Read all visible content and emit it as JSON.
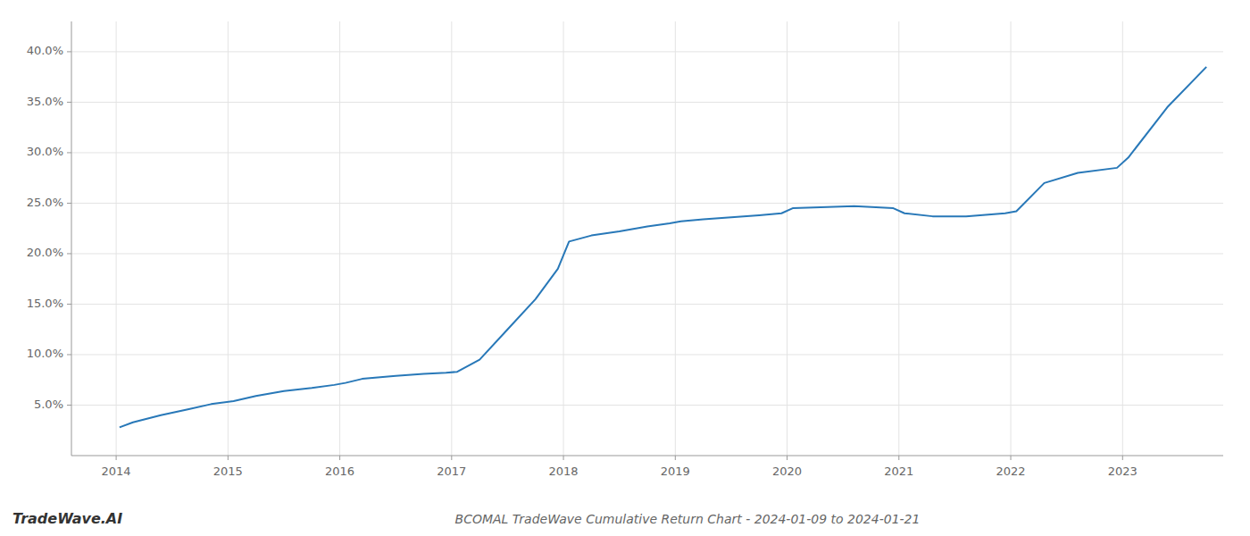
{
  "chart_data": {
    "type": "line",
    "title": "BCOMAL TradeWave Cumulative Return Chart - 2024-01-09 to 2024-01-21",
    "annotations": [
      "TradeWave.AI"
    ],
    "x": [
      2014.03,
      2014.15,
      2014.4,
      2014.65,
      2014.85,
      2015.05,
      2015.25,
      2015.5,
      2015.75,
      2015.95,
      2016.05,
      2016.2,
      2016.5,
      2016.75,
      2016.95,
      2017.05,
      2017.25,
      2017.5,
      2017.75,
      2017.95,
      2018.05,
      2018.25,
      2018.5,
      2018.75,
      2018.95,
      2019.05,
      2019.25,
      2019.5,
      2019.75,
      2019.95,
      2020.05,
      2020.3,
      2020.6,
      2020.95,
      2021.05,
      2021.3,
      2021.6,
      2021.95,
      2022.05,
      2022.3,
      2022.6,
      2022.95,
      2023.05,
      2023.4,
      2023.75
    ],
    "values": [
      2.8,
      3.3,
      4.0,
      4.6,
      5.1,
      5.4,
      5.9,
      6.4,
      6.7,
      7.0,
      7.2,
      7.6,
      7.9,
      8.1,
      8.2,
      8.3,
      9.5,
      12.5,
      15.5,
      18.5,
      21.2,
      21.8,
      22.2,
      22.7,
      23.0,
      23.2,
      23.4,
      23.6,
      23.8,
      24.0,
      24.5,
      24.6,
      24.7,
      24.5,
      24.0,
      23.7,
      23.7,
      24.0,
      24.2,
      27.0,
      28.0,
      28.5,
      29.5,
      34.5,
      38.5
    ],
    "color": "#2878b8",
    "xlim": [
      2013.6,
      2023.9
    ],
    "xticks": [
      2014,
      2015,
      2016,
      2017,
      2018,
      2019,
      2020,
      2021,
      2022,
      2023
    ],
    "ylim": [
      0,
      43
    ],
    "yticks": [
      {
        "value": 5.0,
        "label": "5.0%"
      },
      {
        "value": 10.0,
        "label": "10.0%"
      },
      {
        "value": 15.0,
        "label": "15.0%"
      },
      {
        "value": 20.0,
        "label": "20.0%"
      },
      {
        "value": 25.0,
        "label": "25.0%"
      },
      {
        "value": 30.0,
        "label": "30.0%"
      },
      {
        "value": 35.0,
        "label": "35.0%"
      },
      {
        "value": 40.0,
        "label": "40.0%"
      }
    ],
    "grid": true
  }
}
